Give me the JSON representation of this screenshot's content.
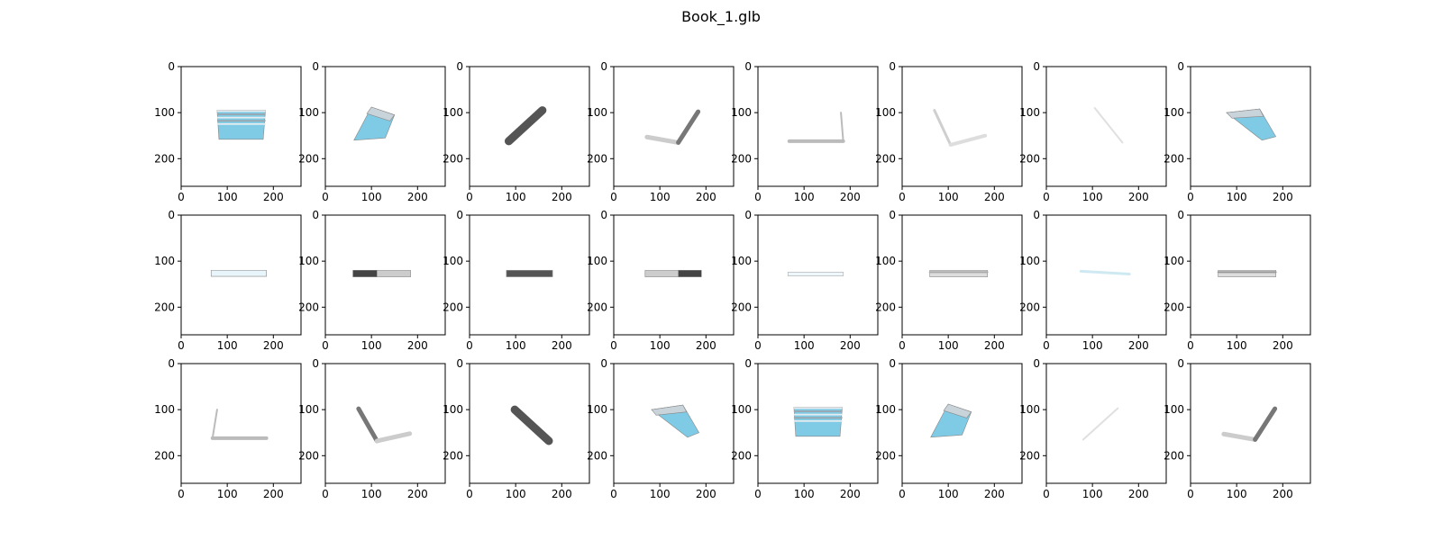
{
  "figure": {
    "title": "Book_1.glb"
  },
  "axes": {
    "xticks": [
      "0",
      "100",
      "200"
    ],
    "yticks": [
      "0",
      "100",
      "200"
    ]
  },
  "grid": {
    "rows": 3,
    "cols": 8
  },
  "panels": [
    {
      "view": "front-open",
      "colors": [
        "#c9d3da",
        "#7fcbe6"
      ]
    },
    {
      "view": "tilted-open-left",
      "colors": [
        "#c9d3da",
        "#7fcbe6"
      ]
    },
    {
      "view": "spine-diagonal-up",
      "colors": [
        "#555555",
        "#aaaaaa"
      ]
    },
    {
      "view": "v-open-right",
      "colors": [
        "#777777",
        "#cccccc"
      ]
    },
    {
      "view": "l-shape-right",
      "colors": [
        "#bbbbbb",
        "#dddddd"
      ]
    },
    {
      "view": "v-open-left",
      "colors": [
        "#bbbbbb",
        "#dddddd"
      ]
    },
    {
      "view": "faint-diagonal",
      "colors": [
        "#e0e0e0",
        "#eeeeee"
      ]
    },
    {
      "view": "tilted-open-right",
      "colors": [
        "#c9d3da",
        "#7fcbe6"
      ]
    },
    {
      "view": "flat-edge",
      "colors": [
        "#dddddd",
        "#e8f6fb"
      ]
    },
    {
      "view": "flat-spine-left",
      "colors": [
        "#444444",
        "#cccccc"
      ]
    },
    {
      "view": "flat-spine-center",
      "colors": [
        "#555555",
        "#999999"
      ]
    },
    {
      "view": "flat-spine-right",
      "colors": [
        "#444444",
        "#cccccc"
      ]
    },
    {
      "view": "flat-faint",
      "colors": [
        "#e8f6fb",
        "#eeeeee"
      ]
    },
    {
      "view": "flat-edge-gray",
      "colors": [
        "#aaaaaa",
        "#dddddd"
      ]
    },
    {
      "view": "flat-faint-left",
      "colors": [
        "#cfe9f3",
        "#eeeeee"
      ]
    },
    {
      "view": "flat-edge-gray",
      "colors": [
        "#999999",
        "#dddddd"
      ]
    },
    {
      "view": "l-shape-left",
      "colors": [
        "#bbbbbb",
        "#dddddd"
      ]
    },
    {
      "view": "v-spine-left",
      "colors": [
        "#777777",
        "#cccccc"
      ]
    },
    {
      "view": "spine-diagonal-down",
      "colors": [
        "#555555",
        "#aaaaaa"
      ]
    },
    {
      "view": "tilted-open-right-low",
      "colors": [
        "#c9d3da",
        "#7fcbe6"
      ]
    },
    {
      "view": "front-open",
      "colors": [
        "#c9d3da",
        "#7fcbe6"
      ]
    },
    {
      "view": "tilted-open-left",
      "colors": [
        "#c9d3da",
        "#7fcbe6"
      ]
    },
    {
      "view": "faint-diagonal-up",
      "colors": [
        "#e0e0e0",
        "#eeeeee"
      ]
    },
    {
      "view": "v-open-right",
      "colors": [
        "#777777",
        "#cccccc"
      ]
    }
  ]
}
